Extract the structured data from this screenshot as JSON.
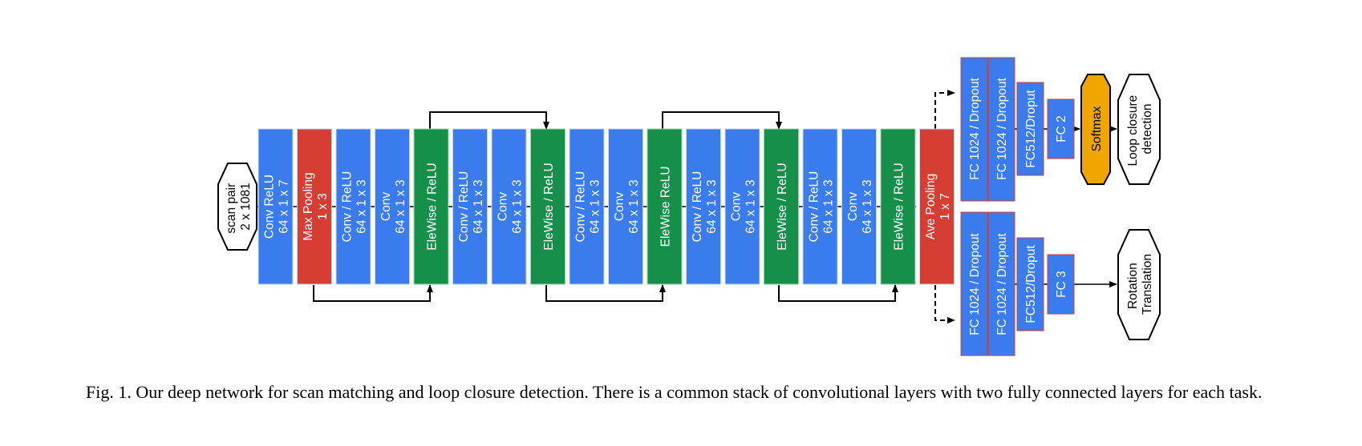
{
  "colors": {
    "conv": "#3a7ced",
    "pool": "#d63d33",
    "eltwise": "#158f4a",
    "softmax": "#f0a500",
    "line": "#000000"
  },
  "input": {
    "line1": "scan pair",
    "line2": "2 x 1081"
  },
  "layers": [
    {
      "type": "conv",
      "line1": "Conv ReLU",
      "line2": "64 x 1 x 7"
    },
    {
      "type": "pool",
      "line1": "Max Pooling",
      "line2": "1 x 3"
    },
    {
      "type": "conv",
      "line1": "Conv / ReLU",
      "line2": "64 x 1 x 3"
    },
    {
      "type": "conv",
      "line1": "Conv",
      "line2": "64 x 1 x 3"
    },
    {
      "type": "eltwise",
      "line1": "EleWise / ReLU",
      "line2": ""
    },
    {
      "type": "conv",
      "line1": "Conv / ReLU",
      "line2": "64 x 1 x 3"
    },
    {
      "type": "conv",
      "line1": "Conv",
      "line2": "64 x 1 x 3"
    },
    {
      "type": "eltwise",
      "line1": "EleWise / ReLU",
      "line2": ""
    },
    {
      "type": "conv",
      "line1": "Conv / ReLU",
      "line2": "64 x 1 x 3"
    },
    {
      "type": "conv",
      "line1": "Conv",
      "line2": "64 x 1 x 3"
    },
    {
      "type": "eltwise",
      "line1": "EleWise ReLU",
      "line2": ""
    },
    {
      "type": "conv",
      "line1": "Conv / ReLU",
      "line2": "64 x 1 x 3"
    },
    {
      "type": "conv",
      "line1": "Conv",
      "line2": "64 x 1 x 3"
    },
    {
      "type": "eltwise",
      "line1": "EleWise / ReLU",
      "line2": ""
    },
    {
      "type": "conv",
      "line1": "Conv / ReLU",
      "line2": "64 x 1 x 3"
    },
    {
      "type": "conv",
      "line1": "Conv",
      "line2": "64 x 1 x 3"
    },
    {
      "type": "eltwise",
      "line1": "EleWise / ReLU",
      "line2": ""
    },
    {
      "type": "pool",
      "line1": "Ave Pooling",
      "line2": "1 x 7"
    }
  ],
  "top_branch": {
    "fc_layers": [
      "FC 1024 / Dropout",
      "FC 1024 / Dropout",
      "FC512/Droput",
      "FC 2"
    ],
    "softmax": "Softmax",
    "output": {
      "line1": "Loop closure",
      "line2": "detection"
    }
  },
  "bottom_branch": {
    "fc_layers": [
      "FC 1024 / Dropout",
      "FC 1024 / Dropout",
      "FC512/Droput",
      "FC 3"
    ],
    "output": {
      "line1": "Rotation",
      "line2": "Translation"
    }
  },
  "caption": "Fig. 1.   Our deep network for scan matching and loop closure detection. There is a common stack of convolutional layers with two fully connected layers for each task."
}
